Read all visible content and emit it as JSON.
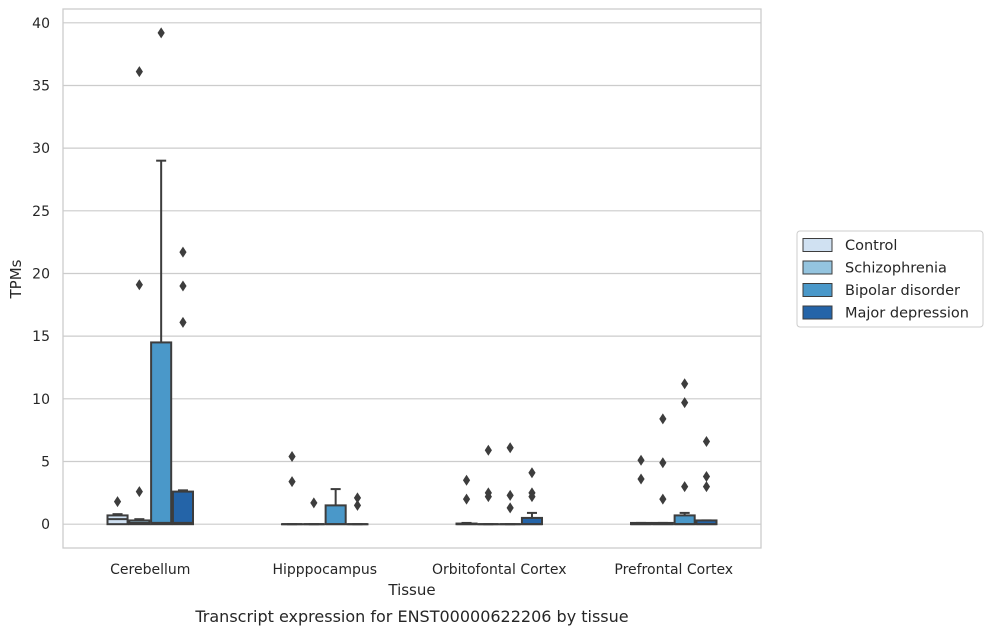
{
  "chart_data": {
    "type": "box",
    "title": "",
    "caption": "Transcript expression for ENST00000622206 by tissue",
    "xlabel": "Tissue",
    "ylabel": "TPMs",
    "ylim": [
      -1.9,
      41.1
    ],
    "yticks": [
      0,
      5,
      10,
      15,
      20,
      25,
      30,
      35,
      40
    ],
    "grid": "y",
    "legend_position": "right",
    "categories": [
      "Cerebellum",
      "Hipppocampus",
      "Orbitofontal Cortex",
      "Prefrontal Cortex"
    ],
    "series": [
      {
        "name": "Control",
        "color": "#d0e1f2",
        "boxes": [
          {
            "whislo": 0,
            "q1": 0,
            "med": 0.4,
            "q3": 0.7,
            "whishi": 0.8,
            "fliers": [
              1.8
            ]
          },
          {
            "whislo": 0,
            "q1": 0,
            "med": 0,
            "q3": 0,
            "whishi": 0,
            "fliers": [
              3.4,
              5.4
            ]
          },
          {
            "whislo": 0,
            "q1": 0,
            "med": 0,
            "q3": 0.05,
            "whishi": 0.1,
            "fliers": [
              2.0,
              3.5
            ]
          },
          {
            "whislo": 0,
            "q1": 0,
            "med": 0,
            "q3": 0.1,
            "whishi": 0.1,
            "fliers": [
              3.6,
              5.1
            ]
          }
        ]
      },
      {
        "name": "Schizophrenia",
        "color": "#94c4df",
        "boxes": [
          {
            "whislo": 0,
            "q1": 0,
            "med": 0.1,
            "q3": 0.3,
            "whishi": 0.4,
            "fliers": [
              2.6,
              19.1,
              36.1
            ]
          },
          {
            "whislo": 0,
            "q1": 0,
            "med": 0,
            "q3": 0,
            "whishi": 0,
            "fliers": [
              1.7
            ]
          },
          {
            "whislo": 0,
            "q1": 0,
            "med": 0,
            "q3": 0,
            "whishi": 0,
            "fliers": [
              2.2,
              2.5,
              5.9
            ]
          },
          {
            "whislo": 0,
            "q1": 0,
            "med": 0,
            "q3": 0.1,
            "whishi": 0.1,
            "fliers": [
              2.0,
              4.9,
              8.4
            ]
          }
        ]
      },
      {
        "name": "Bipolar disorder",
        "color": "#4a98c9",
        "boxes": [
          {
            "whislo": 0,
            "q1": 0,
            "med": 0.1,
            "q3": 14.5,
            "whishi": 29.0,
            "fliers": [
              39.2
            ]
          },
          {
            "whislo": 0,
            "q1": 0,
            "med": 0,
            "q3": 1.5,
            "whishi": 2.8,
            "fliers": []
          },
          {
            "whislo": 0,
            "q1": 0,
            "med": 0,
            "q3": 0,
            "whishi": 0,
            "fliers": [
              1.3,
              2.3,
              6.1
            ]
          },
          {
            "whislo": 0,
            "q1": 0,
            "med": 0,
            "q3": 0.7,
            "whishi": 0.9,
            "fliers": [
              3.0,
              9.7,
              11.2
            ]
          }
        ]
      },
      {
        "name": "Major depression",
        "color": "#2464a8",
        "boxes": [
          {
            "whislo": 0,
            "q1": 0,
            "med": 0.1,
            "q3": 2.6,
            "whishi": 2.7,
            "fliers": [
              16.1,
              19.0,
              21.7
            ]
          },
          {
            "whislo": 0,
            "q1": 0,
            "med": 0,
            "q3": 0,
            "whishi": 0,
            "fliers": [
              1.5,
              2.1
            ]
          },
          {
            "whislo": 0,
            "q1": 0,
            "med": 0,
            "q3": 0.5,
            "whishi": 0.9,
            "fliers": [
              2.2,
              2.5,
              4.1
            ]
          },
          {
            "whislo": 0,
            "q1": 0,
            "med": 0,
            "q3": 0.3,
            "whishi": 0.3,
            "fliers": [
              3.0,
              3.8,
              6.6
            ]
          }
        ]
      }
    ]
  }
}
